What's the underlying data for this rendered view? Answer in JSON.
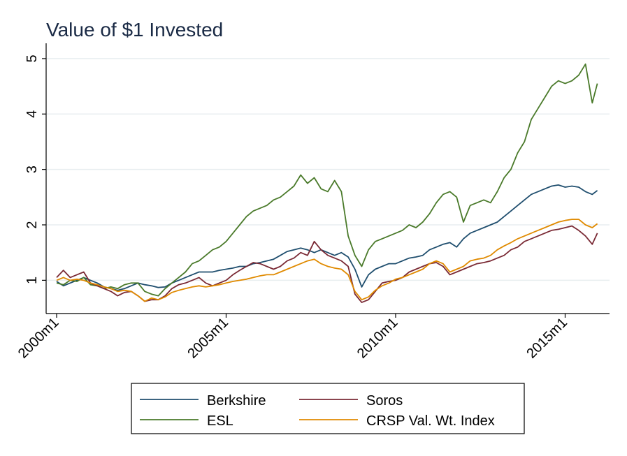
{
  "chart_data": {
    "type": "line",
    "title": "Value of $1 Invested",
    "xlabel": "",
    "ylabel": "",
    "x_range": [
      2000.0,
      2016.0
    ],
    "ylim": [
      0.4,
      5.15
    ],
    "y_ticks": [
      1,
      2,
      3,
      4,
      5
    ],
    "x_ticks": [
      {
        "value": 2000.0,
        "label": "2000m1"
      },
      {
        "value": 2005.0,
        "label": "2005m1"
      },
      {
        "value": 2010.0,
        "label": "2010m1"
      },
      {
        "value": 2015.0,
        "label": "2015m1"
      }
    ],
    "grid": true,
    "legend_position": "bottom",
    "series": [
      {
        "name": "Berkshire",
        "color": "#1f4e6e",
        "x": [
          2000.0,
          2000.2,
          2000.4,
          2000.6,
          2000.8,
          2001.0,
          2001.2,
          2001.4,
          2001.6,
          2001.8,
          2002.0,
          2002.2,
          2002.4,
          2002.6,
          2002.8,
          2003.0,
          2003.2,
          2003.4,
          2003.6,
          2003.8,
          2004.0,
          2004.2,
          2004.4,
          2004.6,
          2004.8,
          2005.0,
          2005.2,
          2005.4,
          2005.6,
          2005.8,
          2006.0,
          2006.2,
          2006.4,
          2006.6,
          2006.8,
          2007.0,
          2007.2,
          2007.4,
          2007.6,
          2007.8,
          2008.0,
          2008.2,
          2008.4,
          2008.6,
          2008.8,
          2009.0,
          2009.2,
          2009.4,
          2009.6,
          2009.8,
          2010.0,
          2010.2,
          2010.4,
          2010.6,
          2010.8,
          2011.0,
          2011.2,
          2011.4,
          2011.6,
          2011.8,
          2012.0,
          2012.2,
          2012.4,
          2012.6,
          2012.8,
          2013.0,
          2013.2,
          2013.4,
          2013.6,
          2013.8,
          2014.0,
          2014.2,
          2014.4,
          2014.6,
          2014.8,
          2015.0,
          2015.2,
          2015.4,
          2015.6,
          2015.8,
          2015.95
        ],
        "y": [
          0.98,
          0.9,
          0.95,
          1.0,
          1.05,
          1.0,
          0.95,
          0.88,
          0.85,
          0.82,
          0.85,
          0.9,
          0.95,
          0.92,
          0.9,
          0.87,
          0.88,
          0.95,
          1.0,
          1.05,
          1.1,
          1.15,
          1.15,
          1.15,
          1.18,
          1.2,
          1.22,
          1.25,
          1.25,
          1.3,
          1.32,
          1.35,
          1.38,
          1.45,
          1.52,
          1.55,
          1.58,
          1.55,
          1.5,
          1.55,
          1.5,
          1.45,
          1.5,
          1.42,
          1.2,
          0.88,
          1.1,
          1.2,
          1.25,
          1.3,
          1.3,
          1.35,
          1.4,
          1.42,
          1.45,
          1.55,
          1.6,
          1.65,
          1.68,
          1.6,
          1.75,
          1.85,
          1.9,
          1.95,
          2.0,
          2.05,
          2.15,
          2.25,
          2.35,
          2.45,
          2.55,
          2.6,
          2.65,
          2.7,
          2.72,
          2.68,
          2.7,
          2.68,
          2.6,
          2.55,
          2.62
        ]
      },
      {
        "name": "ESL",
        "color": "#4a7a2a",
        "x": [
          2000.0,
          2000.2,
          2000.4,
          2000.6,
          2000.8,
          2001.0,
          2001.2,
          2001.4,
          2001.6,
          2001.8,
          2002.0,
          2002.2,
          2002.4,
          2002.6,
          2002.8,
          2003.0,
          2003.2,
          2003.4,
          2003.6,
          2003.8,
          2004.0,
          2004.2,
          2004.4,
          2004.6,
          2004.8,
          2005.0,
          2005.2,
          2005.4,
          2005.6,
          2005.8,
          2006.0,
          2006.2,
          2006.4,
          2006.6,
          2006.8,
          2007.0,
          2007.2,
          2007.4,
          2007.6,
          2007.8,
          2008.0,
          2008.2,
          2008.4,
          2008.6,
          2008.8,
          2009.0,
          2009.2,
          2009.4,
          2009.6,
          2009.8,
          2010.0,
          2010.2,
          2010.4,
          2010.6,
          2010.8,
          2011.0,
          2011.2,
          2011.4,
          2011.6,
          2011.8,
          2012.0,
          2012.2,
          2012.4,
          2012.6,
          2012.8,
          2013.0,
          2013.2,
          2013.4,
          2013.6,
          2013.8,
          2014.0,
          2014.2,
          2014.4,
          2014.6,
          2014.8,
          2015.0,
          2015.2,
          2015.4,
          2015.6,
          2015.8,
          2015.95
        ],
        "y": [
          0.95,
          0.92,
          1.0,
          0.98,
          1.05,
          0.92,
          0.9,
          0.85,
          0.88,
          0.85,
          0.92,
          0.95,
          0.95,
          0.8,
          0.75,
          0.72,
          0.85,
          0.95,
          1.05,
          1.15,
          1.3,
          1.35,
          1.45,
          1.55,
          1.6,
          1.7,
          1.85,
          2.0,
          2.15,
          2.25,
          2.3,
          2.35,
          2.45,
          2.5,
          2.6,
          2.7,
          2.9,
          2.75,
          2.85,
          2.65,
          2.6,
          2.8,
          2.6,
          1.8,
          1.45,
          1.25,
          1.55,
          1.7,
          1.75,
          1.8,
          1.85,
          1.9,
          2.0,
          1.95,
          2.05,
          2.2,
          2.4,
          2.55,
          2.6,
          2.5,
          2.05,
          2.35,
          2.4,
          2.45,
          2.4,
          2.6,
          2.85,
          3.0,
          3.3,
          3.5,
          3.9,
          4.1,
          4.3,
          4.5,
          4.6,
          4.55,
          4.6,
          4.7,
          4.9,
          4.2,
          4.55
        ]
      },
      {
        "name": "Soros",
        "color": "#7a2a35",
        "x": [
          2000.0,
          2000.2,
          2000.4,
          2000.6,
          2000.8,
          2001.0,
          2001.2,
          2001.4,
          2001.6,
          2001.8,
          2002.0,
          2002.2,
          2002.4,
          2002.6,
          2002.8,
          2003.0,
          2003.2,
          2003.4,
          2003.6,
          2003.8,
          2004.0,
          2004.2,
          2004.4,
          2004.6,
          2004.8,
          2005.0,
          2005.2,
          2005.4,
          2005.6,
          2005.8,
          2006.0,
          2006.2,
          2006.4,
          2006.6,
          2006.8,
          2007.0,
          2007.2,
          2007.4,
          2007.6,
          2007.8,
          2008.0,
          2008.2,
          2008.4,
          2008.6,
          2008.8,
          2009.0,
          2009.2,
          2009.4,
          2009.6,
          2009.8,
          2010.0,
          2010.2,
          2010.4,
          2010.6,
          2010.8,
          2011.0,
          2011.2,
          2011.4,
          2011.6,
          2011.8,
          2012.0,
          2012.2,
          2012.4,
          2012.6,
          2012.8,
          2013.0,
          2013.2,
          2013.4,
          2013.6,
          2013.8,
          2014.0,
          2014.2,
          2014.4,
          2014.6,
          2014.8,
          2015.0,
          2015.2,
          2015.4,
          2015.6,
          2015.8,
          2015.95
        ],
        "y": [
          1.05,
          1.18,
          1.05,
          1.1,
          1.15,
          0.95,
          0.9,
          0.85,
          0.8,
          0.72,
          0.78,
          0.8,
          0.72,
          0.62,
          0.65,
          0.65,
          0.72,
          0.85,
          0.92,
          0.95,
          1.0,
          1.05,
          0.95,
          0.9,
          0.95,
          1.0,
          1.1,
          1.18,
          1.25,
          1.32,
          1.3,
          1.25,
          1.2,
          1.25,
          1.35,
          1.4,
          1.5,
          1.45,
          1.7,
          1.55,
          1.45,
          1.4,
          1.35,
          1.25,
          0.75,
          0.6,
          0.65,
          0.8,
          0.95,
          0.98,
          1.0,
          1.05,
          1.15,
          1.2,
          1.25,
          1.3,
          1.32,
          1.25,
          1.1,
          1.15,
          1.2,
          1.25,
          1.3,
          1.32,
          1.35,
          1.4,
          1.45,
          1.55,
          1.6,
          1.7,
          1.75,
          1.8,
          1.85,
          1.9,
          1.92,
          1.95,
          1.98,
          1.9,
          1.8,
          1.65,
          1.85
        ]
      },
      {
        "name": "CRSP Val. Wt. Index",
        "color": "#e08a00",
        "x": [
          2000.0,
          2000.2,
          2000.4,
          2000.6,
          2000.8,
          2001.0,
          2001.2,
          2001.4,
          2001.6,
          2001.8,
          2002.0,
          2002.2,
          2002.4,
          2002.6,
          2002.8,
          2003.0,
          2003.2,
          2003.4,
          2003.6,
          2003.8,
          2004.0,
          2004.2,
          2004.4,
          2004.6,
          2004.8,
          2005.0,
          2005.2,
          2005.4,
          2005.6,
          2005.8,
          2006.0,
          2006.2,
          2006.4,
          2006.6,
          2006.8,
          2007.0,
          2007.2,
          2007.4,
          2007.6,
          2007.8,
          2008.0,
          2008.2,
          2008.4,
          2008.6,
          2008.8,
          2009.0,
          2009.2,
          2009.4,
          2009.6,
          2009.8,
          2010.0,
          2010.2,
          2010.4,
          2010.6,
          2010.8,
          2011.0,
          2011.2,
          2011.4,
          2011.6,
          2011.8,
          2012.0,
          2012.2,
          2012.4,
          2012.6,
          2012.8,
          2013.0,
          2013.2,
          2013.4,
          2013.6,
          2013.8,
          2014.0,
          2014.2,
          2014.4,
          2014.6,
          2014.8,
          2015.0,
          2015.2,
          2015.4,
          2015.6,
          2015.8,
          2015.95
        ],
        "y": [
          1.0,
          1.05,
          1.0,
          1.02,
          1.0,
          0.95,
          0.92,
          0.88,
          0.85,
          0.8,
          0.82,
          0.8,
          0.72,
          0.62,
          0.68,
          0.65,
          0.7,
          0.78,
          0.82,
          0.85,
          0.88,
          0.9,
          0.88,
          0.9,
          0.92,
          0.95,
          0.98,
          1.0,
          1.02,
          1.05,
          1.08,
          1.1,
          1.1,
          1.15,
          1.2,
          1.25,
          1.3,
          1.35,
          1.38,
          1.3,
          1.25,
          1.22,
          1.2,
          1.1,
          0.8,
          0.65,
          0.7,
          0.82,
          0.9,
          0.95,
          1.02,
          1.05,
          1.1,
          1.15,
          1.2,
          1.3,
          1.35,
          1.3,
          1.15,
          1.2,
          1.25,
          1.35,
          1.38,
          1.4,
          1.45,
          1.55,
          1.62,
          1.68,
          1.75,
          1.8,
          1.85,
          1.9,
          1.95,
          2.0,
          2.05,
          2.08,
          2.1,
          2.1,
          2.0,
          1.95,
          2.02
        ]
      }
    ]
  }
}
